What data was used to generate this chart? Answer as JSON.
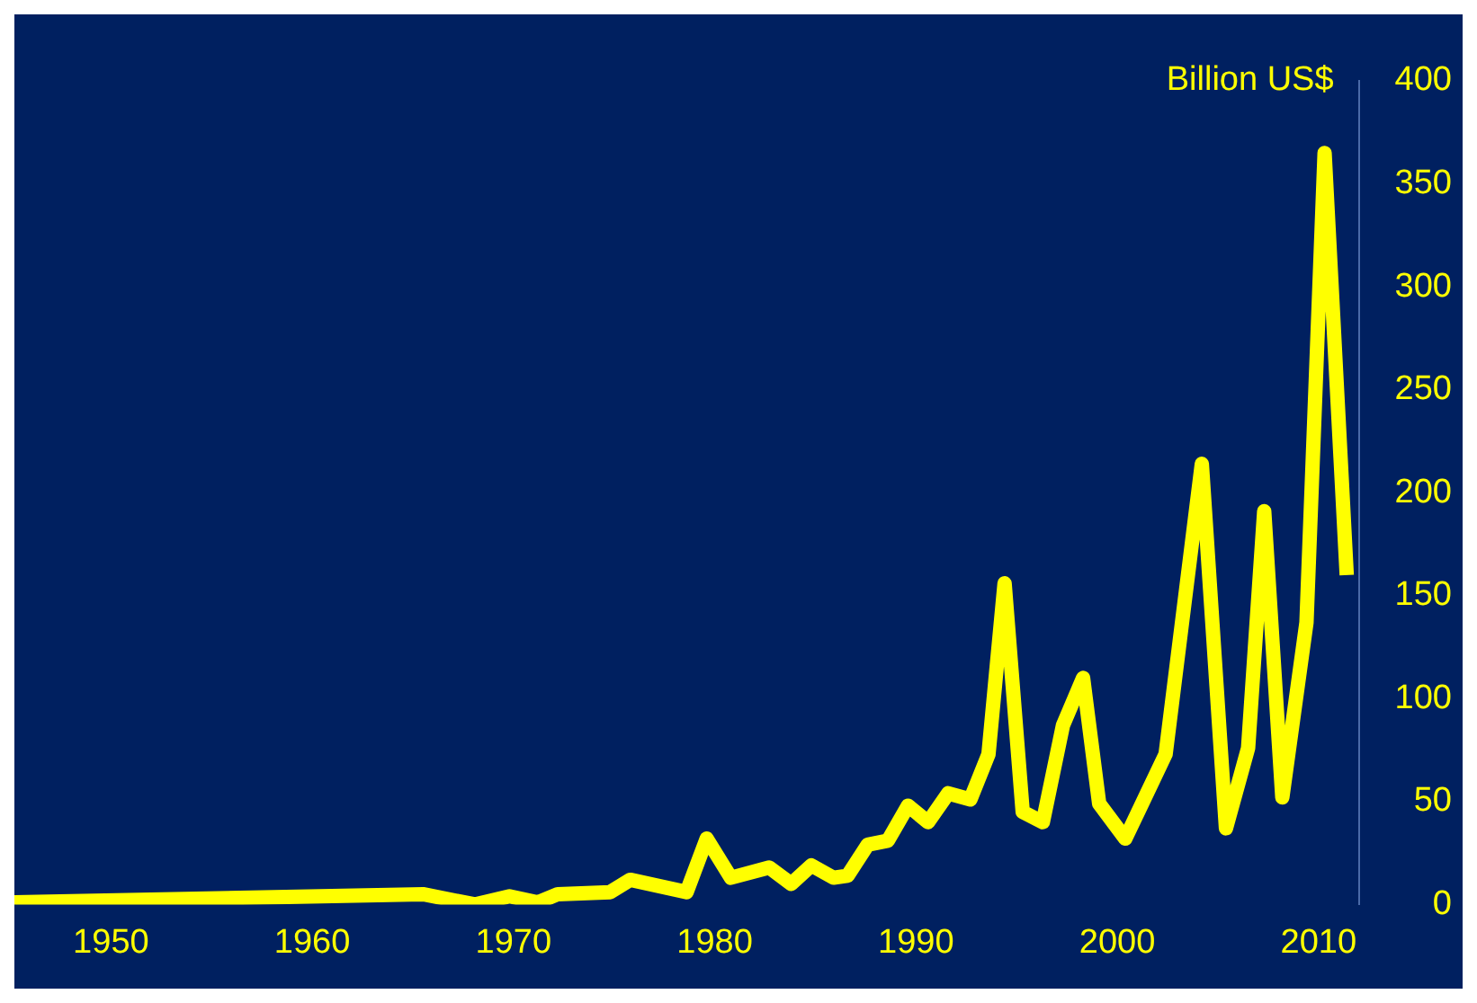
{
  "chart_data": {
    "type": "line",
    "ylabel": "Billion US$",
    "x": [
      1945.2,
      1965.5,
      1968.1,
      1969.8,
      1971.2,
      1972.2,
      1974.8,
      1975.8,
      1978.6,
      1979.6,
      1980.8,
      1982.7,
      1983.8,
      1984.8,
      1985.9,
      1986.6,
      1987.6,
      1988.6,
      1989.6,
      1990.6,
      1991.6,
      1992.7,
      1993.6,
      1994.4,
      1995.3,
      1996.3,
      1997.3,
      1998.3,
      1999.1,
      2000.4,
      2002.4,
      2004.2,
      2005.4,
      2006.5,
      2007.3,
      2008.2,
      2009.4,
      2010.3,
      2011.4
    ],
    "series": [
      {
        "color": "#ffff00",
        "values": [
          1,
          5,
          0,
          4,
          1,
          5,
          6,
          12,
          6,
          32,
          13,
          18,
          10,
          19,
          13,
          14,
          29,
          31,
          48,
          40,
          54,
          51,
          73,
          156,
          45,
          40,
          87,
          110,
          49,
          32,
          73,
          214,
          37,
          76,
          191,
          52,
          137,
          365,
          160
        ]
      }
    ],
    "xlim": [
      1945.2,
      2012
    ],
    "xticks": [
      1950,
      1960,
      1970,
      1980,
      1990,
      2000,
      2010
    ],
    "ylim": [
      0,
      400
    ],
    "yticks": [
      0,
      50,
      100,
      150,
      200,
      250,
      300,
      350,
      400
    ],
    "grid": false,
    "legend": false,
    "marker": "none",
    "line_style": "solid"
  }
}
